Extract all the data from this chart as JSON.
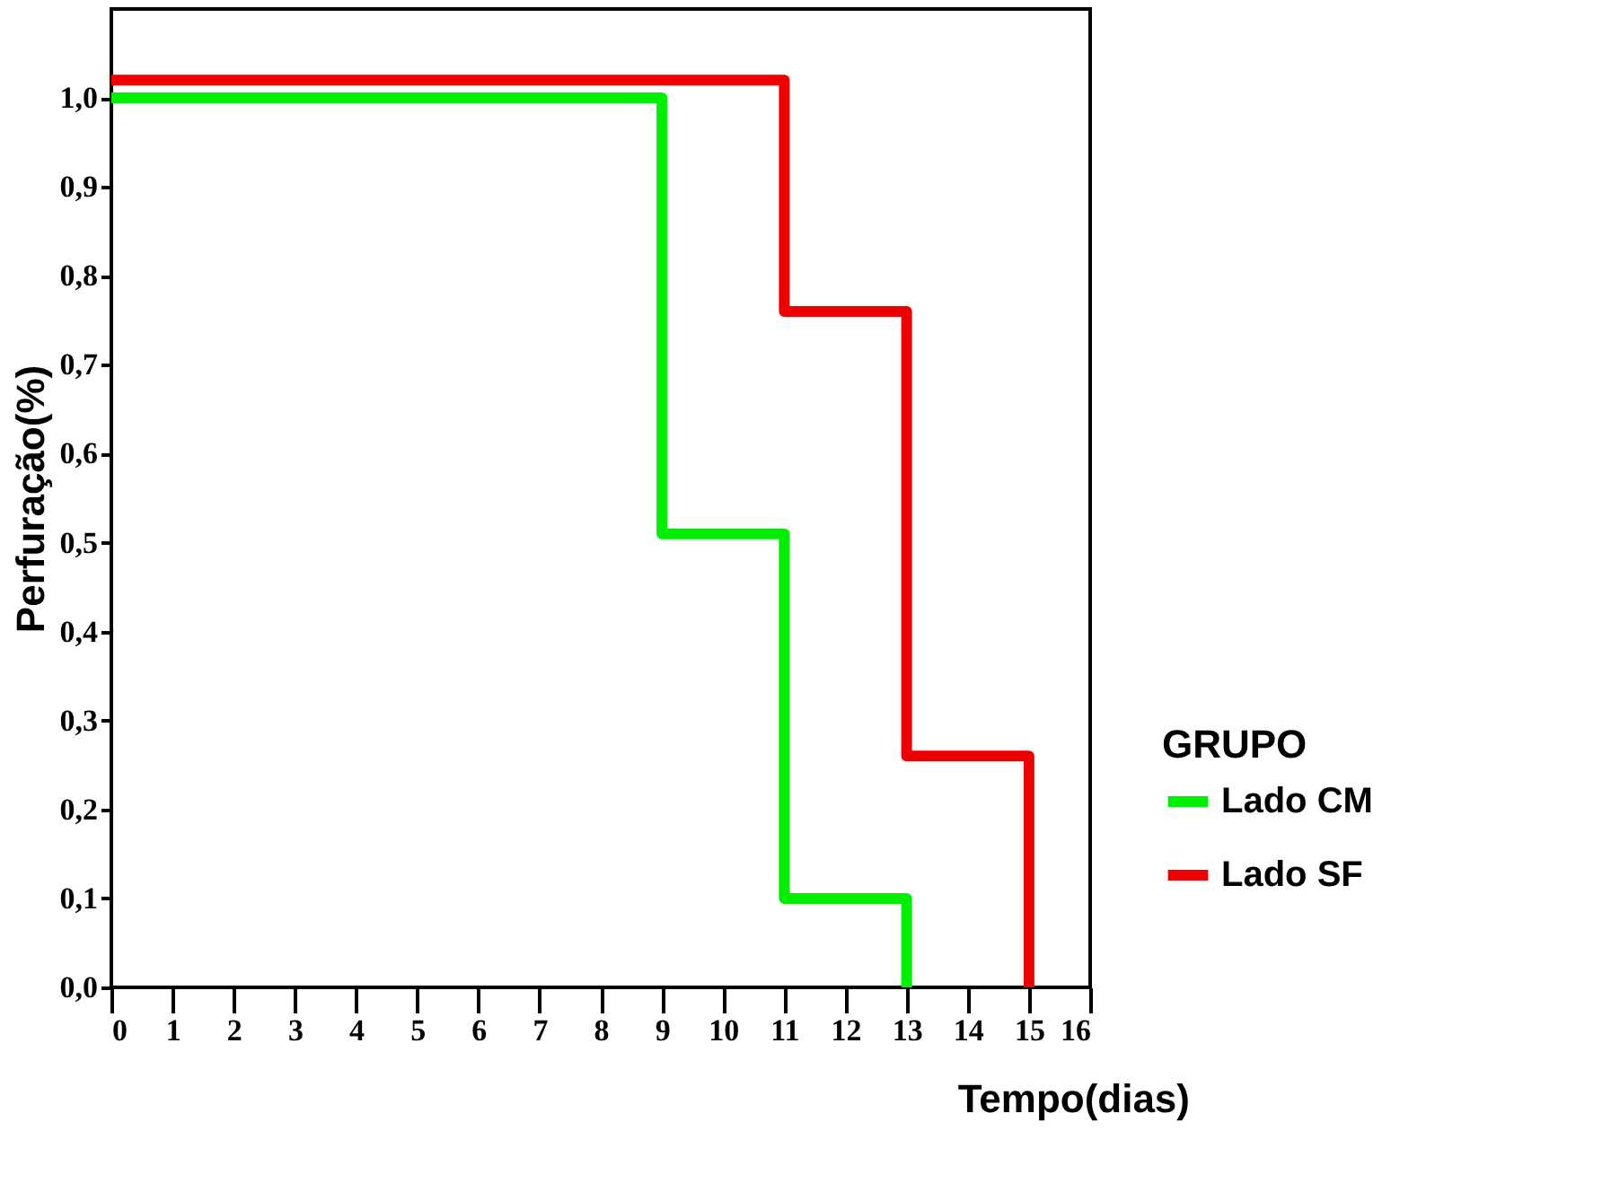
{
  "chart_data": {
    "type": "step",
    "xlabel": "Tempo(dias)",
    "ylabel": "Perfuração(%)",
    "legend_title": "GRUPO",
    "legend": "right",
    "grid": false,
    "line_style": "solid",
    "marker": "none",
    "xlim": [
      0,
      16
    ],
    "xticks": [
      0,
      1,
      2,
      3,
      4,
      5,
      6,
      7,
      8,
      9,
      10,
      11,
      12,
      13,
      14,
      15,
      16
    ],
    "ylim": [
      0,
      1.1
    ],
    "yticks": [
      {
        "value": 0,
        "label": "0,0"
      },
      {
        "value": 0.1,
        "label": "0,1"
      },
      {
        "value": 0.2,
        "label": "0,2"
      },
      {
        "value": 0.3,
        "label": "0,3"
      },
      {
        "value": 0.4,
        "label": "0,4"
      },
      {
        "value": 0.5,
        "label": "0,5"
      },
      {
        "value": 0.6,
        "label": "0,6"
      },
      {
        "value": 0.7,
        "label": "0,7"
      },
      {
        "value": 0.8,
        "label": "0,8"
      },
      {
        "value": 0.9,
        "label": "0,9"
      },
      {
        "value": 1.0,
        "label": "1,0"
      }
    ],
    "series": [
      {
        "name": "Lado CM",
        "color": "#00ee00",
        "x": [
          0,
          9,
          11,
          13
        ],
        "values": [
          1.0,
          0.51,
          0.1,
          0
        ]
      },
      {
        "name": "Lado SF",
        "color": "#ee0000",
        "x": [
          0,
          11,
          13,
          15
        ],
        "values": [
          1.02,
          0.76,
          0.26,
          0
        ]
      }
    ]
  }
}
